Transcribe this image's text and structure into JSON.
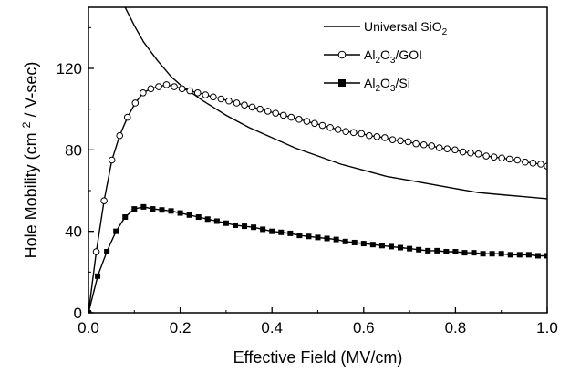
{
  "chart_data": {
    "type": "line",
    "title": "",
    "xlabel": "Effective Field (MV/cm)",
    "ylabel_main": "Hole Mobility (cm",
    "ylabel_sup": "2",
    "ylabel_tail": "/ V-sec)",
    "xlim": [
      0,
      1.0
    ],
    "ylim": [
      0,
      150
    ],
    "xticks": [
      0.0,
      0.2,
      0.4,
      0.6,
      0.8,
      1.0
    ],
    "xtick_labels": [
      "0.0",
      "0.2",
      "0.4",
      "0.6",
      "0.8",
      "1.0"
    ],
    "yticks": [
      0,
      40,
      80,
      120
    ],
    "ytick_labels": [
      "0",
      "40",
      "80",
      "120"
    ],
    "grid": false,
    "legend_position": "top-right",
    "series": [
      {
        "name": "Universal SiO2",
        "legend_parts": [
          "Universal SiO",
          "2",
          ""
        ],
        "marker": "none",
        "x": [
          0.08,
          0.1,
          0.12,
          0.15,
          0.18,
          0.2,
          0.25,
          0.3,
          0.35,
          0.4,
          0.45,
          0.5,
          0.55,
          0.6,
          0.65,
          0.7,
          0.75,
          0.8,
          0.85,
          0.9,
          0.95,
          1.0
        ],
        "y": [
          150,
          141,
          133,
          124,
          116,
          112,
          104,
          97,
          91,
          86,
          81,
          77,
          73,
          70,
          67,
          65,
          63,
          61,
          59,
          58,
          57,
          56
        ]
      },
      {
        "name": "Al2O3/GOI",
        "legend_parts": [
          "Al",
          "2",
          "O",
          "3",
          "/GOI"
        ],
        "marker": "open-circle",
        "x": [
          0.0,
          0.017,
          0.034,
          0.051,
          0.068,
          0.085,
          0.102,
          0.119,
          0.136,
          0.153,
          0.17,
          0.187,
          0.204,
          0.221,
          0.238,
          0.255,
          0.272,
          0.289,
          0.306,
          0.323,
          0.34,
          0.357,
          0.374,
          0.391,
          0.408,
          0.425,
          0.442,
          0.459,
          0.476,
          0.493,
          0.51,
          0.527,
          0.544,
          0.561,
          0.578,
          0.595,
          0.612,
          0.629,
          0.646,
          0.663,
          0.68,
          0.697,
          0.714,
          0.731,
          0.748,
          0.765,
          0.782,
          0.799,
          0.816,
          0.833,
          0.85,
          0.867,
          0.884,
          0.901,
          0.918,
          0.935,
          0.952,
          0.969,
          0.986,
          1.0
        ],
        "y": [
          0,
          30,
          55,
          75,
          87,
          96,
          103,
          108,
          110,
          111,
          112,
          111,
          110,
          109,
          108,
          107,
          106,
          105,
          104,
          103,
          102,
          101,
          100,
          99,
          98,
          97,
          96,
          95,
          94,
          93,
          92,
          91,
          90,
          89,
          88.5,
          88,
          87,
          86.5,
          86,
          85,
          84.5,
          84,
          83,
          82.5,
          82,
          81,
          80.5,
          80,
          79,
          78.5,
          78,
          77,
          76.5,
          76,
          75.5,
          75,
          74,
          73.5,
          73,
          72
        ]
      },
      {
        "name": "Al2O3/Si",
        "legend_parts": [
          "Al",
          "2",
          "O",
          "3",
          "/Si"
        ],
        "marker": "filled-square",
        "x": [
          0.0,
          0.02,
          0.04,
          0.06,
          0.08,
          0.1,
          0.12,
          0.14,
          0.16,
          0.18,
          0.2,
          0.22,
          0.24,
          0.26,
          0.28,
          0.3,
          0.32,
          0.34,
          0.36,
          0.38,
          0.4,
          0.42,
          0.44,
          0.46,
          0.48,
          0.5,
          0.52,
          0.54,
          0.56,
          0.58,
          0.6,
          0.62,
          0.64,
          0.66,
          0.68,
          0.7,
          0.72,
          0.74,
          0.76,
          0.78,
          0.8,
          0.82,
          0.84,
          0.86,
          0.88,
          0.9,
          0.92,
          0.94,
          0.96,
          0.98,
          1.0
        ],
        "y": [
          0,
          18,
          30,
          40,
          47,
          51,
          52,
          51,
          50.5,
          50,
          49,
          48,
          47,
          46,
          45,
          44,
          43,
          42.5,
          42,
          41,
          40,
          39.5,
          39,
          38,
          37.5,
          37,
          36.5,
          36,
          35,
          34.5,
          34,
          33.5,
          33,
          32.5,
          32,
          31.5,
          31,
          30.5,
          30.5,
          30,
          30,
          29.5,
          29.5,
          29,
          29,
          29,
          28.5,
          28.5,
          28.5,
          28,
          28
        ]
      }
    ]
  }
}
